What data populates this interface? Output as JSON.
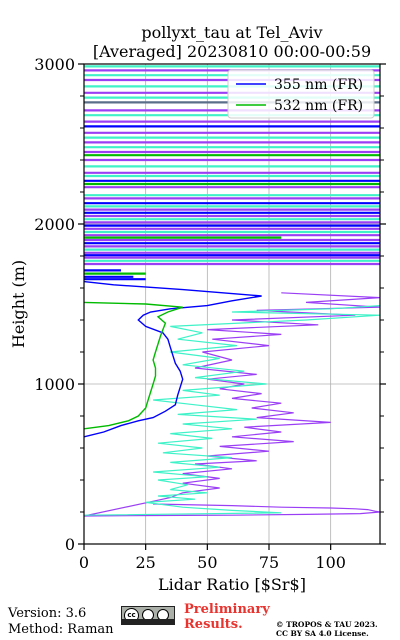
{
  "chart_data": {
    "type": "line",
    "title_line1": "pollyxt_tau at Tel_Aviv",
    "title_line2": "[Averaged] 20230810 00:00-00:59",
    "xlabel": "Lidar Ratio [$Sr$]",
    "ylabel": "Height (m)",
    "xlim": [
      0,
      120
    ],
    "ylim": [
      0,
      3000
    ],
    "x_ticks": [
      "0",
      "25",
      "50",
      "75",
      "100"
    ],
    "y_ticks": [
      "0",
      "1000",
      "2000",
      "3000"
    ],
    "grid": true,
    "legend": {
      "position": "top-right",
      "entries": [
        "355 nm (FR)",
        "532 nm (FR)"
      ]
    },
    "series": [
      {
        "name": "355 nm (FR)",
        "color": "#0000ff",
        "points": [
          [
            0,
            670
          ],
          [
            8,
            700
          ],
          [
            15,
            740
          ],
          [
            22,
            770
          ],
          [
            28,
            790
          ],
          [
            33,
            830
          ],
          [
            37,
            870
          ],
          [
            38,
            930
          ],
          [
            39,
            980
          ],
          [
            40,
            1030
          ],
          [
            39,
            1080
          ],
          [
            37,
            1130
          ],
          [
            36,
            1180
          ],
          [
            35,
            1230
          ],
          [
            34,
            1280
          ],
          [
            32,
            1320
          ],
          [
            25,
            1360
          ],
          [
            22,
            1400
          ],
          [
            24,
            1430
          ],
          [
            27,
            1450
          ],
          [
            35,
            1470
          ],
          [
            50,
            1490
          ],
          [
            60,
            1520
          ],
          [
            72,
            1550
          ],
          [
            40,
            1590
          ],
          [
            12,
            1620
          ],
          [
            0,
            1640
          ]
        ]
      },
      {
        "name": "532 nm (FR)",
        "color": "#00bb00",
        "points": [
          [
            0,
            720
          ],
          [
            10,
            740
          ],
          [
            18,
            770
          ],
          [
            22,
            800
          ],
          [
            25,
            850
          ],
          [
            26,
            900
          ],
          [
            27,
            950
          ],
          [
            28,
            1000
          ],
          [
            29,
            1050
          ],
          [
            29,
            1100
          ],
          [
            28,
            1150
          ],
          [
            29,
            1200
          ],
          [
            30,
            1250
          ],
          [
            31,
            1300
          ],
          [
            32,
            1340
          ],
          [
            33,
            1380
          ],
          [
            30,
            1420
          ],
          [
            34,
            1450
          ],
          [
            40,
            1480
          ],
          [
            25,
            1500
          ],
          [
            0,
            1510
          ]
        ]
      }
    ],
    "background_series": [
      {
        "color": "#9b3ff5",
        "points": [
          [
            28,
            250
          ],
          [
            60,
            240
          ],
          [
            80,
            230
          ],
          [
            100,
            225
          ],
          [
            110,
            220
          ],
          [
            115,
            215
          ],
          [
            118,
            205
          ],
          [
            120,
            200
          ],
          [
            112,
            190
          ],
          [
            90,
            185
          ],
          [
            60,
            180
          ],
          [
            30,
            178
          ],
          [
            0,
            175
          ],
          [
            35,
            290
          ],
          [
            40,
            320
          ],
          [
            55,
            350
          ],
          [
            40,
            380
          ],
          [
            55,
            410
          ],
          [
            40,
            440
          ],
          [
            60,
            470
          ],
          [
            45,
            500
          ],
          [
            70,
            520
          ],
          [
            50,
            550
          ],
          [
            75,
            580
          ],
          [
            55,
            610
          ],
          [
            85,
            640
          ],
          [
            60,
            670
          ],
          [
            80,
            700
          ],
          [
            65,
            730
          ],
          [
            100,
            760
          ],
          [
            70,
            790
          ],
          [
            85,
            820
          ],
          [
            68,
            850
          ],
          [
            80,
            880
          ],
          [
            60,
            910
          ],
          [
            72,
            940
          ],
          [
            55,
            970
          ],
          [
            65,
            1000
          ],
          [
            50,
            1030
          ],
          [
            70,
            1060
          ],
          [
            45,
            1100
          ],
          [
            60,
            1150
          ],
          [
            48,
            1200
          ],
          [
            75,
            1240
          ],
          [
            52,
            1280
          ],
          [
            80,
            1310
          ],
          [
            50,
            1340
          ],
          [
            95,
            1370
          ],
          [
            60,
            1400
          ],
          [
            110,
            1430
          ],
          [
            70,
            1460
          ],
          [
            120,
            1480
          ],
          [
            90,
            1510
          ],
          [
            120,
            1540
          ],
          [
            80,
            1570
          ]
        ]
      },
      {
        "color": "#3ff2c8",
        "points": [
          [
            0,
            180
          ],
          [
            80,
            195
          ],
          [
            60,
            210
          ],
          [
            40,
            230
          ],
          [
            25,
            260
          ],
          [
            45,
            280
          ],
          [
            30,
            300
          ],
          [
            50,
            320
          ],
          [
            35,
            340
          ],
          [
            42,
            370
          ],
          [
            30,
            400
          ],
          [
            50,
            420
          ],
          [
            28,
            450
          ],
          [
            55,
            480
          ],
          [
            35,
            510
          ],
          [
            60,
            540
          ],
          [
            32,
            570
          ],
          [
            48,
            600
          ],
          [
            30,
            630
          ],
          [
            52,
            660
          ],
          [
            35,
            690
          ],
          [
            60,
            720
          ],
          [
            40,
            750
          ],
          [
            70,
            780
          ],
          [
            38,
            810
          ],
          [
            62,
            840
          ],
          [
            45,
            870
          ],
          [
            28,
            900
          ],
          [
            55,
            930
          ],
          [
            40,
            960
          ],
          [
            74,
            1000
          ],
          [
            45,
            1040
          ],
          [
            65,
            1080
          ],
          [
            40,
            1120
          ],
          [
            55,
            1160
          ],
          [
            35,
            1200
          ],
          [
            62,
            1240
          ],
          [
            38,
            1280
          ],
          [
            48,
            1320
          ],
          [
            35,
            1360
          ],
          [
            90,
            1400
          ],
          [
            120,
            1430
          ],
          [
            60,
            1450
          ],
          [
            100,
            1470
          ],
          [
            120,
            1490
          ]
        ]
      }
    ],
    "upper_bands": [
      {
        "y": 1655,
        "x0": 0,
        "x1": 25,
        "color": "#0000ff"
      },
      {
        "y": 1670,
        "x0": 0,
        "x1": 20,
        "color": "#0000ff"
      },
      {
        "y": 1690,
        "x0": 0,
        "x1": 25,
        "color": "#00bb00"
      },
      {
        "y": 1710,
        "x0": 0,
        "x1": 15,
        "color": "#0000ff"
      },
      {
        "y": 1750,
        "x0": 0,
        "x1": 120,
        "color": "#9b3ff5"
      },
      {
        "y": 1770,
        "x0": 0,
        "x1": 120,
        "color": "#3ff2c8"
      },
      {
        "y": 1790,
        "x0": 0,
        "x1": 120,
        "color": "#9b3ff5"
      },
      {
        "y": 1805,
        "x0": 0,
        "x1": 120,
        "color": "#0000ff"
      },
      {
        "y": 1820,
        "x0": 0,
        "x1": 120,
        "color": "#9b3ff5"
      },
      {
        "y": 1840,
        "x0": 0,
        "x1": 120,
        "color": "#3ff2c8"
      },
      {
        "y": 1860,
        "x0": 0,
        "x1": 120,
        "color": "#9b3ff5"
      },
      {
        "y": 1880,
        "x0": 0,
        "x1": 120,
        "color": "#0000ff"
      },
      {
        "y": 1900,
        "x0": 0,
        "x1": 120,
        "color": "#9b3ff5"
      },
      {
        "y": 1915,
        "x0": 0,
        "x1": 80,
        "color": "#00bb00"
      },
      {
        "y": 1930,
        "x0": 0,
        "x1": 120,
        "color": "#9b3ff5"
      },
      {
        "y": 1950,
        "x0": 0,
        "x1": 120,
        "color": "#3ff2c8"
      },
      {
        "y": 1970,
        "x0": 0,
        "x1": 120,
        "color": "#9b3ff5"
      },
      {
        "y": 1990,
        "x0": 0,
        "x1": 120,
        "color": "#0000ff"
      },
      {
        "y": 2010,
        "x0": 0,
        "x1": 120,
        "color": "#9b3ff5"
      },
      {
        "y": 2030,
        "x0": 0,
        "x1": 120,
        "color": "#3ff2c8"
      },
      {
        "y": 2050,
        "x0": 0,
        "x1": 120,
        "color": "#9b3ff5"
      },
      {
        "y": 2070,
        "x0": 0,
        "x1": 120,
        "color": "#0000ff"
      },
      {
        "y": 2090,
        "x0": 0,
        "x1": 120,
        "color": "#9b3ff5"
      },
      {
        "y": 2110,
        "x0": 0,
        "x1": 120,
        "color": "#3ff2c8"
      },
      {
        "y": 2130,
        "x0": 0,
        "x1": 120,
        "color": "#0000ff"
      },
      {
        "y": 2160,
        "x0": 0,
        "x1": 120,
        "color": "#9b3ff5"
      },
      {
        "y": 2180,
        "x0": 0,
        "x1": 120,
        "color": "#3ff2c8"
      },
      {
        "y": 2230,
        "x0": 0,
        "x1": 120,
        "color": "#9b3ff5"
      },
      {
        "y": 2250,
        "x0": 0,
        "x1": 120,
        "color": "#00bb00"
      },
      {
        "y": 2270,
        "x0": 0,
        "x1": 120,
        "color": "#0000ff"
      },
      {
        "y": 2300,
        "x0": 0,
        "x1": 120,
        "color": "#3ff2c8"
      },
      {
        "y": 2320,
        "x0": 0,
        "x1": 120,
        "color": "#9b3ff5"
      },
      {
        "y": 2360,
        "x0": 0,
        "x1": 120,
        "color": "#3ff2c8"
      },
      {
        "y": 2400,
        "x0": 0,
        "x1": 120,
        "color": "#9b3ff5"
      },
      {
        "y": 2430,
        "x0": 0,
        "x1": 120,
        "color": "#00bb00"
      },
      {
        "y": 2450,
        "x0": 0,
        "x1": 120,
        "color": "#9b3ff5"
      },
      {
        "y": 2480,
        "x0": 0,
        "x1": 120,
        "color": "#3ff2c8"
      },
      {
        "y": 2510,
        "x0": 0,
        "x1": 120,
        "color": "#9b3ff5"
      },
      {
        "y": 2540,
        "x0": 0,
        "x1": 120,
        "color": "#3ff2c8"
      },
      {
        "y": 2570,
        "x0": 0,
        "x1": 120,
        "color": "#9b3ff5"
      },
      {
        "y": 2610,
        "x0": 0,
        "x1": 120,
        "color": "#0000ff"
      },
      {
        "y": 2640,
        "x0": 0,
        "x1": 120,
        "color": "#9b3ff5"
      },
      {
        "y": 2680,
        "x0": 0,
        "x1": 120,
        "color": "#3ff2c8"
      },
      {
        "y": 2710,
        "x0": 0,
        "x1": 120,
        "color": "#9b3ff5"
      },
      {
        "y": 2760,
        "x0": 0,
        "x1": 120,
        "color": "#5a6e8a"
      },
      {
        "y": 2790,
        "x0": 0,
        "x1": 120,
        "color": "#3ff2c8"
      },
      {
        "y": 2820,
        "x0": 0,
        "x1": 120,
        "color": "#9b3ff5"
      },
      {
        "y": 2860,
        "x0": 0,
        "x1": 120,
        "color": "#3ff2c8"
      },
      {
        "y": 2900,
        "x0": 0,
        "x1": 120,
        "color": "#9b3ff5"
      },
      {
        "y": 2930,
        "x0": 0,
        "x1": 120,
        "color": "#3ff2c8"
      },
      {
        "y": 2960,
        "x0": 0,
        "x1": 120,
        "color": "#9b3ff5"
      },
      {
        "y": 2985,
        "x0": 0,
        "x1": 120,
        "color": "#3ff2c8"
      }
    ]
  },
  "footer": {
    "version": "Version: 3.6",
    "method": "Method: Raman",
    "preliminary_line1": "Preliminary",
    "preliminary_line2": "Results.",
    "copyright_line1": "© TROPOS & TAU 2023.",
    "copyright_line2": "CC BY SA 4.0 License.",
    "license_badge_text": "cc"
  }
}
